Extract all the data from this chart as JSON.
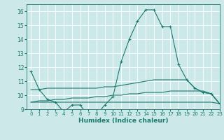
{
  "x": [
    0,
    1,
    2,
    3,
    4,
    5,
    6,
    7,
    8,
    9,
    10,
    11,
    12,
    13,
    14,
    15,
    16,
    17,
    18,
    19,
    20,
    21,
    22,
    23
  ],
  "line1": [
    11.7,
    10.4,
    9.7,
    9.5,
    8.8,
    9.3,
    9.3,
    8.5,
    8.6,
    9.3,
    9.9,
    12.4,
    14.0,
    15.3,
    16.1,
    16.1,
    14.9,
    14.9,
    12.2,
    11.1,
    10.5,
    10.2,
    10.1,
    9.4
  ],
  "line2": [
    10.4,
    10.4,
    10.5,
    10.5,
    10.5,
    10.5,
    10.5,
    10.5,
    10.5,
    10.6,
    10.6,
    10.7,
    10.8,
    10.9,
    11.0,
    11.1,
    11.1,
    11.1,
    11.1,
    11.1,
    10.5,
    10.2,
    10.1,
    9.4
  ],
  "line3": [
    9.5,
    9.6,
    9.6,
    9.7,
    9.7,
    9.8,
    9.8,
    9.8,
    9.9,
    9.9,
    10.0,
    10.0,
    10.1,
    10.1,
    10.2,
    10.2,
    10.2,
    10.3,
    10.3,
    10.3,
    10.3,
    10.3,
    10.1,
    9.4
  ],
  "line4": [
    9.5,
    9.5,
    9.5,
    9.5,
    9.5,
    9.5,
    9.5,
    9.5,
    9.5,
    9.5,
    9.5,
    9.5,
    9.5,
    9.5,
    9.5,
    9.5,
    9.5,
    9.5,
    9.5,
    9.5,
    9.5,
    9.5,
    9.5,
    9.4
  ],
  "color": "#1a7a6e",
  "bg_color": "#cce8e8",
  "grid_color": "#ffffff",
  "xlabel": "Humidex (Indice chaleur)",
  "ylim": [
    9,
    16.5
  ],
  "xlim": [
    -0.5,
    23
  ],
  "yticks": [
    9,
    10,
    11,
    12,
    13,
    14,
    15,
    16
  ],
  "xticks": [
    0,
    1,
    2,
    3,
    4,
    5,
    6,
    7,
    8,
    9,
    10,
    11,
    12,
    13,
    14,
    15,
    16,
    17,
    18,
    19,
    20,
    21,
    22,
    23
  ]
}
